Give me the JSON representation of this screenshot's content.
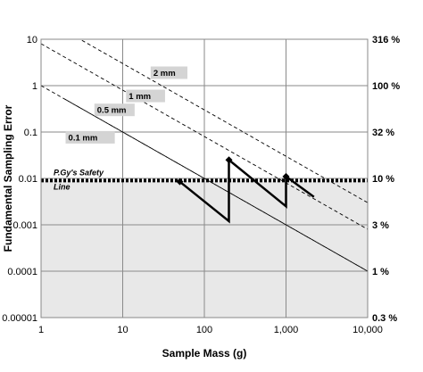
{
  "chart_data": {
    "type": "line",
    "title": "",
    "xlabel": "Sample Mass (g)",
    "ylabel": "Fundamental Sampling Error",
    "xscale": "log",
    "yscale": "log",
    "xlim": [
      1,
      10000
    ],
    "ylim": [
      1e-05,
      10
    ],
    "x_ticks": [
      "1",
      "10",
      "100",
      "1,000",
      "10,000"
    ],
    "y_ticks": [
      "0.00001",
      "0.0001",
      "0.001",
      "0.01",
      "0.1",
      "1",
      "10"
    ],
    "grid": true,
    "shaded_region": {
      "y_below": 0.009,
      "color": "#e8e8e8"
    },
    "right_axis_labels": [
      {
        "y": 10,
        "label": "316 %"
      },
      {
        "y": 1,
        "label": "100 %"
      },
      {
        "y": 0.1,
        "label": "32 %"
      },
      {
        "y": 0.01,
        "label": "10 %"
      },
      {
        "y": 0.001,
        "label": "3  %"
      },
      {
        "y": 0.0001,
        "label": "1 %"
      },
      {
        "y": 1e-05,
        "label": "0.3 %"
      }
    ],
    "safety_line": {
      "y": 0.009,
      "label": [
        "P.Gy's Safety",
        "Line"
      ]
    },
    "reference_lines": [
      {
        "name": "2 mm",
        "points": [
          [
            2,
            15
          ],
          [
            20000,
            0.0015
          ]
        ],
        "label_box": {
          "x": [
            22,
            62
          ],
          "y": 1.9
        }
      },
      {
        "name": "1 mm",
        "points": [
          [
            1,
            8
          ],
          [
            10000,
            0.0008
          ]
        ],
        "label_box": {
          "x": [
            11,
            33
          ],
          "y": 0.6
        }
      },
      {
        "name": "0.5 mm",
        "points": [
          [
            1,
            1
          ],
          [
            10000,
            0.0001
          ]
        ],
        "label_box": {
          "x": [
            4.5,
            14
          ],
          "y": 0.3
        }
      },
      {
        "name": "0.1 mm",
        "points": [
          [
            2,
            0.5
          ],
          [
            10000,
            0.0001
          ]
        ],
        "label_box": {
          "x": [
            2,
            8
          ],
          "y": 0.077
        }
      }
    ],
    "series": [
      {
        "points": [
          [
            50,
            0.0085
          ],
          [
            200,
            0.0012
          ],
          [
            200,
            0.025
          ],
          [
            1000,
            0.0025
          ],
          [
            1000,
            0.011
          ],
          [
            2200,
            0.004
          ]
        ],
        "markers": [
          [
            50,
            0.0085
          ],
          [
            200,
            0.025
          ],
          [
            1000,
            0.011
          ]
        ]
      }
    ]
  }
}
